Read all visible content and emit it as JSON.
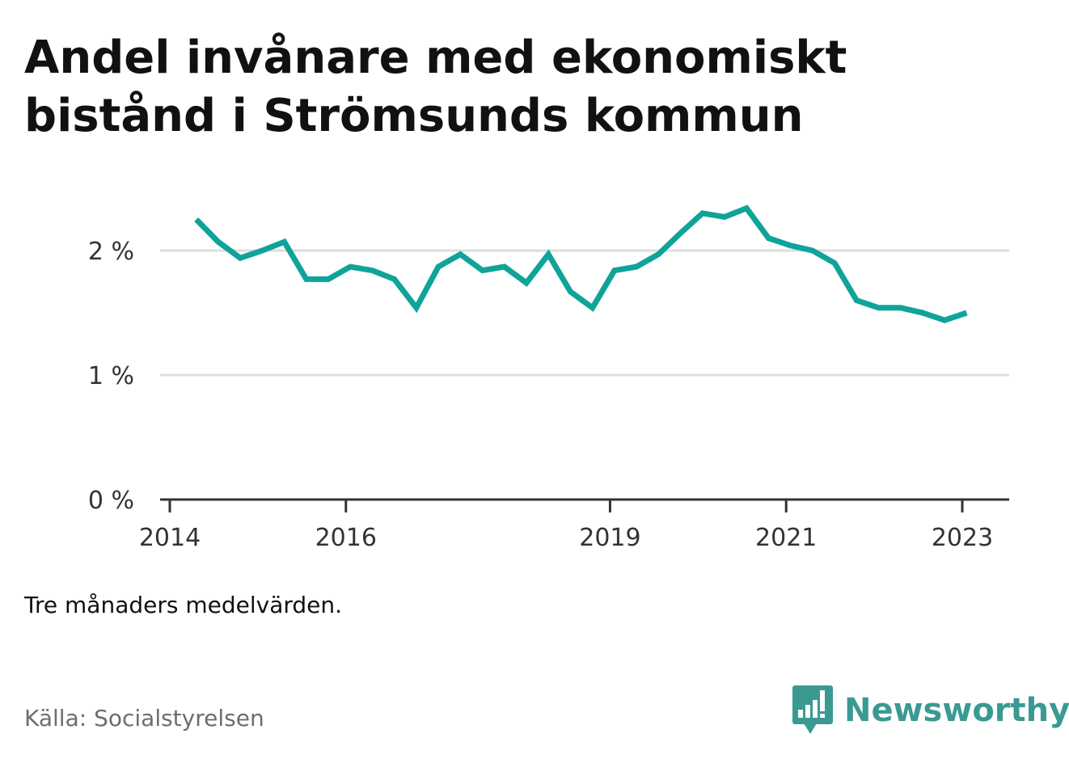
{
  "title_lines": [
    "Andel invånare med ekonomiskt",
    "bistånd i Strömsunds kommun"
  ],
  "note": "Tre månaders medelvärden.",
  "source": "Källa: Socialstyrelsen",
  "brand": {
    "name": "Newsworthy",
    "icon": "bar-chart-speech-bubble-icon"
  },
  "colors": {
    "line": "#0fa39a",
    "grid": "#dddddd",
    "axis": "#333333",
    "brand": "#3a9a92"
  },
  "chart_data": {
    "type": "line",
    "title": "Andel invånare med ekonomiskt bistånd i Strömsunds kommun",
    "xlabel": "",
    "ylabel": "",
    "ylim": [
      0,
      2.5
    ],
    "xlim": [
      2014.0,
      2023.5
    ],
    "yticks": [
      0,
      1,
      2
    ],
    "ytick_labels": [
      "0 %",
      "1 %",
      "2 %"
    ],
    "xticks": [
      2014,
      2016,
      2019,
      2021,
      2023
    ],
    "xtick_labels": [
      "2014",
      "2016",
      "2019",
      "2021",
      "2023"
    ],
    "grid": true,
    "series": [
      {
        "x": [
          2014.3,
          2014.55,
          2014.8,
          2015.05,
          2015.3,
          2015.55,
          2015.8,
          2016.05,
          2016.3,
          2016.55,
          2016.8,
          2017.05,
          2017.3,
          2017.55,
          2017.8,
          2018.05,
          2018.3,
          2018.55,
          2018.8,
          2019.05,
          2019.3,
          2019.55,
          2019.8,
          2020.05,
          2020.3,
          2020.55,
          2020.8,
          2021.05,
          2021.3,
          2021.55,
          2021.8,
          2022.05,
          2022.3,
          2022.55,
          2022.8,
          2023.05
        ],
        "values": [
          2.25,
          2.07,
          1.94,
          2.0,
          2.07,
          1.77,
          1.77,
          1.87,
          1.84,
          1.77,
          1.54,
          1.87,
          1.97,
          1.84,
          1.87,
          1.74,
          1.97,
          1.67,
          1.54,
          1.84,
          1.87,
          1.97,
          2.14,
          2.3,
          2.27,
          2.34,
          2.1,
          2.04,
          2.0,
          1.9,
          1.6,
          1.54,
          1.54,
          1.5,
          1.44,
          1.5
        ]
      }
    ]
  }
}
